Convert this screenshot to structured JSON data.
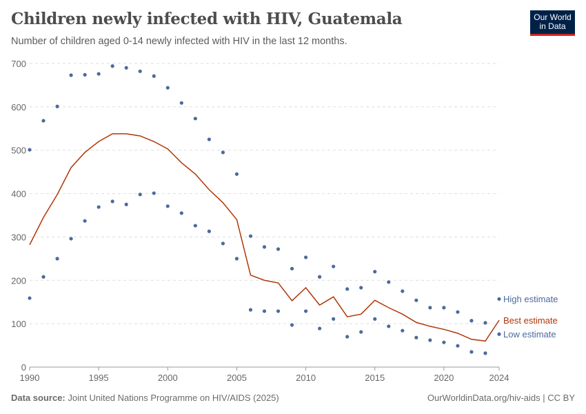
{
  "header": {
    "title": "Children newly infected with HIV, Guatemala",
    "subtitle": "Number of children aged 0-14 newly infected with HIV in the last 12 months.",
    "logo_text": "Our World in Data"
  },
  "footer": {
    "source_label": "Data source:",
    "source": "Joint United Nations Programme on HIV/AIDS (2025)",
    "url": "OurWorldinData.org/hiv-aids | CC BY"
  },
  "colors": {
    "best": "#b13507",
    "bounds": "#4c6a9c",
    "grid": "#dddddd",
    "text": "#666666"
  },
  "chart_data": {
    "type": "line",
    "title": "Children newly infected with HIV, Guatemala",
    "xlim": [
      1990,
      2024
    ],
    "ylim": [
      0,
      700
    ],
    "x_ticks": [
      1990,
      1995,
      2000,
      2005,
      2010,
      2015,
      2020,
      2024
    ],
    "y_ticks": [
      0,
      100,
      200,
      300,
      400,
      500,
      600,
      700
    ],
    "grid": true,
    "legend": "right-end-labels",
    "x": [
      1990,
      1991,
      1992,
      1993,
      1994,
      1995,
      1996,
      1997,
      1998,
      1999,
      2000,
      2001,
      2002,
      2003,
      2004,
      2005,
      2006,
      2007,
      2008,
      2009,
      2010,
      2011,
      2012,
      2013,
      2014,
      2015,
      2016,
      2017,
      2018,
      2019,
      2020,
      2021,
      2022,
      2023,
      2024
    ],
    "series": [
      {
        "name": "High estimate",
        "style": "dots",
        "values": [
          501,
          568,
          601,
          673,
          674,
          676,
          694,
          690,
          682,
          671,
          644,
          609,
          573,
          525,
          495,
          445,
          302,
          277,
          272,
          227,
          253,
          208,
          232,
          180,
          183,
          220,
          196,
          175,
          154,
          137,
          137,
          127,
          107,
          102,
          157
        ]
      },
      {
        "name": "Best estimate",
        "style": "line",
        "values": [
          282,
          345,
          398,
          460,
          495,
          520,
          538,
          538,
          533,
          520,
          503,
          471,
          445,
          409,
          379,
          340,
          212,
          200,
          194,
          153,
          183,
          143,
          162,
          116,
          122,
          154,
          137,
          122,
          103,
          94,
          87,
          78,
          64,
          60,
          108
        ]
      },
      {
        "name": "Low estimate",
        "style": "dots",
        "values": [
          159,
          208,
          250,
          296,
          337,
          369,
          382,
          375,
          398,
          401,
          371,
          355,
          326,
          313,
          285,
          250,
          132,
          129,
          129,
          97,
          129,
          89,
          111,
          70,
          81,
          111,
          94,
          84,
          68,
          62,
          57,
          49,
          35,
          32,
          76
        ]
      }
    ]
  }
}
